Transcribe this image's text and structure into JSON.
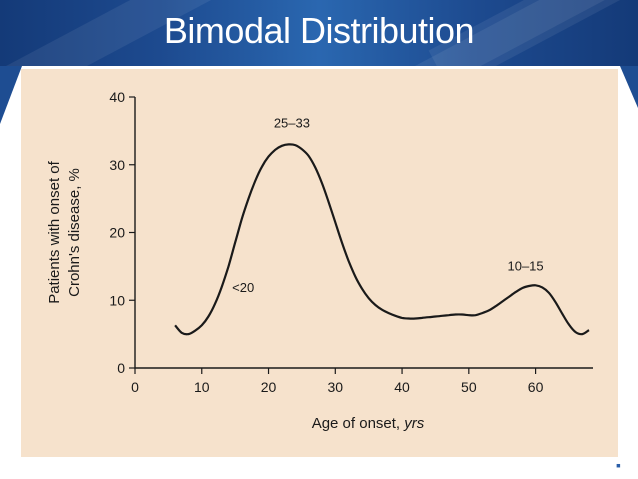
{
  "slide": {
    "title": "Bimodal Distribution"
  },
  "colors": {
    "header": "#1d4a8f",
    "figure_background": "#f6e2cc",
    "ink": "#1a1a1a"
  },
  "icons": {
    "corner": "small-square-icon"
  },
  "chart_data": {
    "type": "line",
    "title": "",
    "xlabel": "Age of onset, ",
    "xlabel_italic": "yrs",
    "ylabel_lines": [
      "Patients with onset of",
      "Crohn's disease, %"
    ],
    "xlim": [
      0,
      68
    ],
    "ylim": [
      0,
      40
    ],
    "xticks": [
      "0",
      "10",
      "20",
      "30",
      "40",
      "50",
      "60"
    ],
    "yticks": [
      "0",
      "10",
      "20",
      "30",
      "40"
    ],
    "grid": false,
    "legend": "none",
    "series": [
      {
        "x": [
          6,
          7,
          8,
          9,
          10,
          11,
          12,
          13,
          14,
          15,
          16,
          17,
          18,
          19,
          20,
          21,
          22,
          23,
          24,
          25,
          26,
          27,
          28,
          29,
          30,
          31,
          32,
          33,
          34,
          35,
          36,
          37,
          38,
          39,
          40,
          41,
          42,
          43,
          44,
          45,
          46,
          47,
          48,
          49,
          50,
          51,
          52,
          53,
          54,
          55,
          56,
          57,
          58,
          59,
          60,
          61,
          62,
          63,
          64,
          65,
          66,
          67,
          68
        ],
        "y": [
          6.3,
          5.2,
          5.0,
          5.5,
          6.3,
          7.6,
          9.5,
          12.0,
          15.0,
          18.5,
          22.0,
          25.0,
          27.6,
          29.7,
          31.2,
          32.2,
          32.8,
          33.0,
          32.9,
          32.3,
          31.3,
          29.6,
          27.3,
          24.5,
          21.5,
          18.5,
          15.8,
          13.5,
          11.7,
          10.3,
          9.3,
          8.6,
          8.1,
          7.7,
          7.4,
          7.3,
          7.3,
          7.4,
          7.5,
          7.6,
          7.7,
          7.8,
          7.9,
          7.9,
          7.8,
          7.8,
          8.1,
          8.5,
          9.1,
          9.8,
          10.5,
          11.2,
          11.8,
          12.1,
          12.2,
          11.9,
          11.1,
          9.7,
          8.0,
          6.4,
          5.3,
          5.0,
          5.6
        ]
      }
    ],
    "annotations": [
      {
        "text": "25–33",
        "x": 23.5,
        "y": 35.5
      },
      {
        "text": "<20",
        "x": 16.2,
        "y": 11.2
      },
      {
        "text": "10–15",
        "x": 58.5,
        "y": 14.4
      }
    ]
  }
}
